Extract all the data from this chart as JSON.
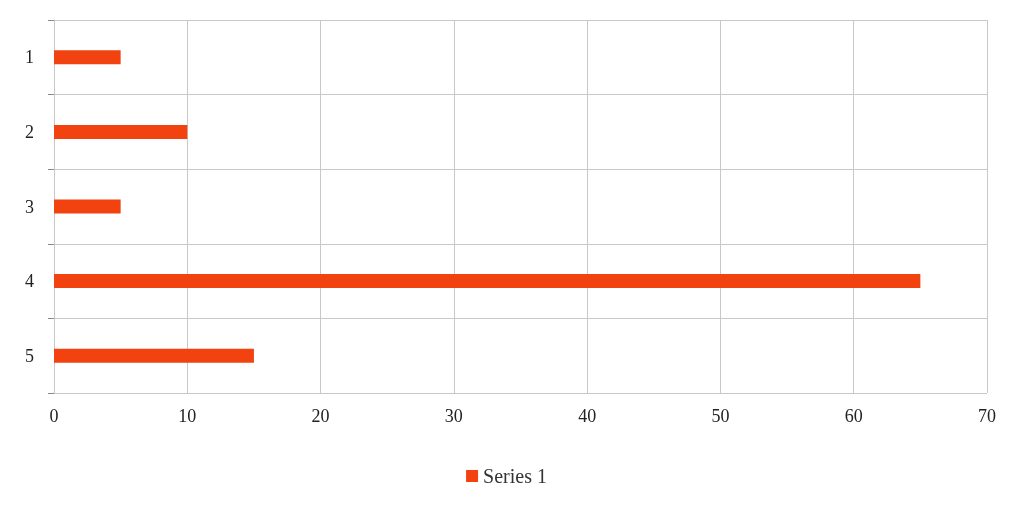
{
  "chart_data": {
    "type": "bar",
    "orientation": "horizontal",
    "categories": [
      "1",
      "2",
      "3",
      "4",
      "5"
    ],
    "series": [
      {
        "name": "Series 1",
        "color": "#f2420f",
        "values": [
          5,
          10,
          5,
          65,
          15
        ]
      }
    ],
    "xlim": [
      0,
      70
    ],
    "xticks": [
      0,
      10,
      20,
      30,
      40,
      50,
      60,
      70
    ],
    "grid": true,
    "legend": "bottom"
  }
}
